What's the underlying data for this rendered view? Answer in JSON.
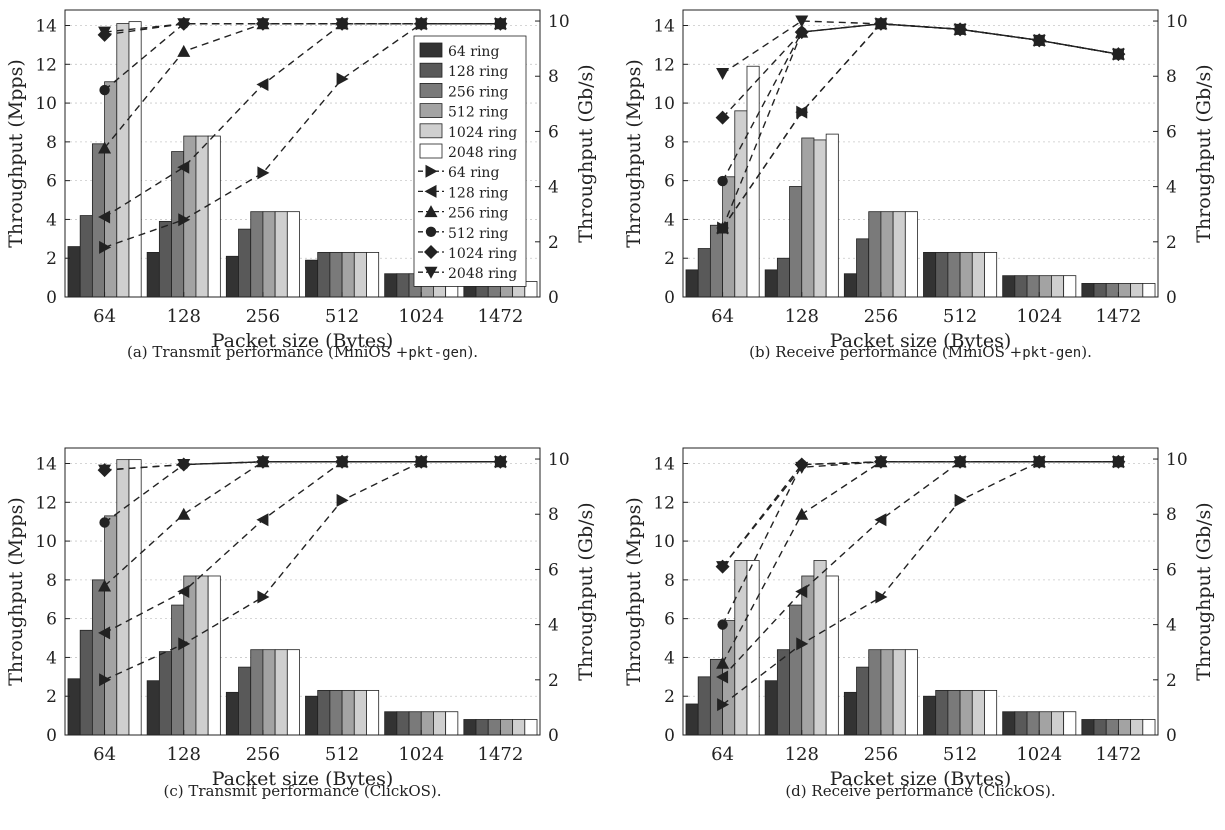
{
  "figure": {
    "legend": {
      "bar_entries": [
        "64 ring",
        "128 ring",
        "256 ring",
        "512 ring",
        "1024 ring",
        "2048 ring"
      ],
      "line_entries": [
        "64 ring",
        "128 ring",
        "256 ring",
        "512 ring",
        "1024 ring",
        "2048 ring"
      ],
      "line_markers": [
        "triangle-right",
        "triangle-left",
        "triangle-up",
        "circle",
        "diamond",
        "triangle-down"
      ]
    },
    "colors": {
      "bar_fills": [
        "#333333",
        "#595959",
        "#7a7a7a",
        "#a3a3a3",
        "#cfcfcf",
        "#ffffff"
      ],
      "bar_stroke": "#222222",
      "line": "#222222",
      "grid": "#c8c8c8"
    }
  },
  "chart_data": [
    {
      "type": "bar",
      "caption_prefix": "(a)  Transmit performance (MiniOS +",
      "caption_code": "pkt-gen",
      "caption_suffix": ").",
      "xlabel": "Packet size (Bytes)",
      "ylabel": "Throughput (Mpps)",
      "y2label": "Throughput (Gb/s)",
      "categories": [
        "64",
        "128",
        "256",
        "512",
        "1024",
        "1472"
      ],
      "ylim": [
        0,
        14.8
      ],
      "y2lim": [
        0,
        10.4
      ],
      "yticks": [
        0,
        2,
        4,
        6,
        8,
        10,
        12,
        14
      ],
      "y2ticks": [
        0,
        2,
        4,
        6,
        8,
        10
      ],
      "grid": true,
      "legend_position": "top-right",
      "bar_series": [
        {
          "name": "64 ring",
          "values": [
            2.6,
            2.3,
            2.1,
            1.9,
            1.2,
            0.8
          ]
        },
        {
          "name": "128 ring",
          "values": [
            4.2,
            3.9,
            3.5,
            2.3,
            1.2,
            0.8
          ]
        },
        {
          "name": "256 ring",
          "values": [
            7.9,
            7.5,
            4.4,
            2.3,
            1.2,
            0.8
          ]
        },
        {
          "name": "512 ring",
          "values": [
            11.1,
            8.3,
            4.4,
            2.3,
            1.2,
            0.8
          ]
        },
        {
          "name": "1024 ring",
          "values": [
            14.1,
            8.3,
            4.4,
            2.3,
            1.2,
            0.8
          ]
        },
        {
          "name": "2048 ring",
          "values": [
            14.2,
            8.3,
            4.4,
            2.3,
            1.2,
            0.8
          ]
        }
      ],
      "line_series": [
        {
          "name": "64 ring",
          "values": [
            1.8,
            2.8,
            4.5,
            7.9,
            9.9,
            9.9
          ]
        },
        {
          "name": "128 ring",
          "values": [
            2.9,
            4.7,
            7.7,
            9.9,
            9.9,
            9.9
          ]
        },
        {
          "name": "256 ring",
          "values": [
            5.4,
            8.9,
            9.9,
            9.9,
            9.9,
            9.9
          ]
        },
        {
          "name": "512 ring",
          "values": [
            7.5,
            9.9,
            9.9,
            9.9,
            9.9,
            9.9
          ]
        },
        {
          "name": "1024 ring",
          "values": [
            9.5,
            9.9,
            9.9,
            9.9,
            9.9,
            9.9
          ]
        },
        {
          "name": "2048 ring",
          "values": [
            9.6,
            9.9,
            9.9,
            9.9,
            9.9,
            9.9
          ]
        }
      ]
    },
    {
      "type": "bar",
      "caption_prefix": "(b)  Receive performance (MiniOS +",
      "caption_code": "pkt-gen",
      "caption_suffix": ").",
      "xlabel": "Packet size (Bytes)",
      "ylabel": "Throughput (Mpps)",
      "y2label": "Throughput (Gb/s)",
      "categories": [
        "64",
        "128",
        "256",
        "512",
        "1024",
        "1472"
      ],
      "ylim": [
        0,
        14.8
      ],
      "y2lim": [
        0,
        10.4
      ],
      "yticks": [
        0,
        2,
        4,
        6,
        8,
        10,
        12,
        14
      ],
      "y2ticks": [
        0,
        2,
        4,
        6,
        8,
        10
      ],
      "grid": true,
      "bar_series": [
        {
          "name": "64 ring",
          "values": [
            1.4,
            1.4,
            1.2,
            2.3,
            1.1,
            0.7
          ]
        },
        {
          "name": "128 ring",
          "values": [
            2.5,
            2.0,
            3.0,
            2.3,
            1.1,
            0.7
          ]
        },
        {
          "name": "256 ring",
          "values": [
            3.7,
            5.7,
            4.4,
            2.3,
            1.1,
            0.7
          ]
        },
        {
          "name": "512 ring",
          "values": [
            6.2,
            8.2,
            4.4,
            2.3,
            1.1,
            0.7
          ]
        },
        {
          "name": "1024 ring",
          "values": [
            9.6,
            8.1,
            4.4,
            2.3,
            1.1,
            0.7
          ]
        },
        {
          "name": "2048 ring",
          "values": [
            11.9,
            8.4,
            4.4,
            2.3,
            1.1,
            0.7
          ]
        }
      ],
      "line_series": [
        {
          "name": "64 ring",
          "values": [
            2.5,
            6.7,
            9.9,
            9.7,
            9.3,
            8.8
          ]
        },
        {
          "name": "128 ring",
          "values": [
            2.5,
            6.7,
            9.9,
            9.7,
            9.3,
            8.8
          ]
        },
        {
          "name": "256 ring",
          "values": [
            2.5,
            9.6,
            9.9,
            9.7,
            9.3,
            8.8
          ]
        },
        {
          "name": "512 ring",
          "values": [
            4.2,
            9.6,
            9.9,
            9.7,
            9.3,
            8.8
          ]
        },
        {
          "name": "1024 ring",
          "values": [
            6.5,
            9.6,
            9.9,
            9.7,
            9.3,
            8.8
          ]
        },
        {
          "name": "2048 ring",
          "values": [
            8.1,
            10.0,
            9.9,
            9.7,
            9.3,
            8.8
          ]
        }
      ]
    },
    {
      "type": "bar",
      "caption_prefix": "(c)  Transmit performance (ClickOS).",
      "caption_code": "",
      "caption_suffix": "",
      "xlabel": "Packet size (Bytes)",
      "ylabel": "Throughput (Mpps)",
      "y2label": "Throughput (Gb/s)",
      "categories": [
        "64",
        "128",
        "256",
        "512",
        "1024",
        "1472"
      ],
      "ylim": [
        0,
        14.8
      ],
      "y2lim": [
        0,
        10.4
      ],
      "yticks": [
        0,
        2,
        4,
        6,
        8,
        10,
        12,
        14
      ],
      "y2ticks": [
        0,
        2,
        4,
        6,
        8,
        10
      ],
      "grid": true,
      "bar_series": [
        {
          "name": "64 ring",
          "values": [
            2.9,
            2.8,
            2.2,
            2.0,
            1.2,
            0.8
          ]
        },
        {
          "name": "128 ring",
          "values": [
            5.4,
            4.3,
            3.5,
            2.3,
            1.2,
            0.8
          ]
        },
        {
          "name": "256 ring",
          "values": [
            8.0,
            6.7,
            4.4,
            2.3,
            1.2,
            0.8
          ]
        },
        {
          "name": "512 ring",
          "values": [
            11.3,
            8.2,
            4.4,
            2.3,
            1.2,
            0.8
          ]
        },
        {
          "name": "1024 ring",
          "values": [
            14.2,
            8.2,
            4.4,
            2.3,
            1.2,
            0.8
          ]
        },
        {
          "name": "2048 ring",
          "values": [
            14.2,
            8.2,
            4.4,
            2.3,
            1.2,
            0.8
          ]
        }
      ],
      "line_series": [
        {
          "name": "64 ring",
          "values": [
            2.0,
            3.3,
            5.0,
            8.5,
            9.9,
            9.9
          ]
        },
        {
          "name": "128 ring",
          "values": [
            3.7,
            5.2,
            7.8,
            9.9,
            9.9,
            9.9
          ]
        },
        {
          "name": "256 ring",
          "values": [
            5.4,
            8.0,
            9.9,
            9.9,
            9.9,
            9.9
          ]
        },
        {
          "name": "512 ring",
          "values": [
            7.7,
            9.8,
            9.9,
            9.9,
            9.9,
            9.9
          ]
        },
        {
          "name": "1024 ring",
          "values": [
            9.6,
            9.8,
            9.9,
            9.9,
            9.9,
            9.9
          ]
        },
        {
          "name": "2048 ring",
          "values": [
            9.6,
            9.8,
            9.9,
            9.9,
            9.9,
            9.9
          ]
        }
      ]
    },
    {
      "type": "bar",
      "caption_prefix": "(d)  Receive performance (ClickOS).",
      "caption_code": "",
      "caption_suffix": "",
      "xlabel": "Packet size (Bytes)",
      "ylabel": "Throughput (Mpps)",
      "y2label": "Throughput (Gb/s)",
      "categories": [
        "64",
        "128",
        "256",
        "512",
        "1024",
        "1472"
      ],
      "ylim": [
        0,
        14.8
      ],
      "y2lim": [
        0,
        10.4
      ],
      "yticks": [
        0,
        2,
        4,
        6,
        8,
        10,
        12,
        14
      ],
      "y2ticks": [
        0,
        2,
        4,
        6,
        8,
        10
      ],
      "grid": true,
      "bar_series": [
        {
          "name": "64 ring",
          "values": [
            1.6,
            2.8,
            2.2,
            2.0,
            1.2,
            0.8
          ]
        },
        {
          "name": "128 ring",
          "values": [
            3.0,
            4.4,
            3.5,
            2.3,
            1.2,
            0.8
          ]
        },
        {
          "name": "256 ring",
          "values": [
            3.9,
            6.7,
            4.4,
            2.3,
            1.2,
            0.8
          ]
        },
        {
          "name": "512 ring",
          "values": [
            5.9,
            8.2,
            4.4,
            2.3,
            1.2,
            0.8
          ]
        },
        {
          "name": "1024 ring",
          "values": [
            9.0,
            9.0,
            4.4,
            2.3,
            1.2,
            0.8
          ]
        },
        {
          "name": "2048 ring",
          "values": [
            9.0,
            8.2,
            4.4,
            2.3,
            1.2,
            0.8
          ]
        }
      ],
      "line_series": [
        {
          "name": "64 ring",
          "values": [
            1.1,
            3.3,
            5.0,
            8.5,
            9.9,
            9.9
          ]
        },
        {
          "name": "128 ring",
          "values": [
            2.1,
            5.2,
            7.8,
            9.9,
            9.9,
            9.9
          ]
        },
        {
          "name": "256 ring",
          "values": [
            2.6,
            8.0,
            9.9,
            9.9,
            9.9,
            9.9
          ]
        },
        {
          "name": "512 ring",
          "values": [
            4.0,
            9.8,
            9.9,
            9.9,
            9.9,
            9.9
          ]
        },
        {
          "name": "1024 ring",
          "values": [
            6.1,
            9.8,
            9.9,
            9.9,
            9.9,
            9.9
          ]
        },
        {
          "name": "2048 ring",
          "values": [
            6.1,
            9.7,
            9.9,
            9.9,
            9.9,
            9.9
          ]
        }
      ]
    }
  ]
}
